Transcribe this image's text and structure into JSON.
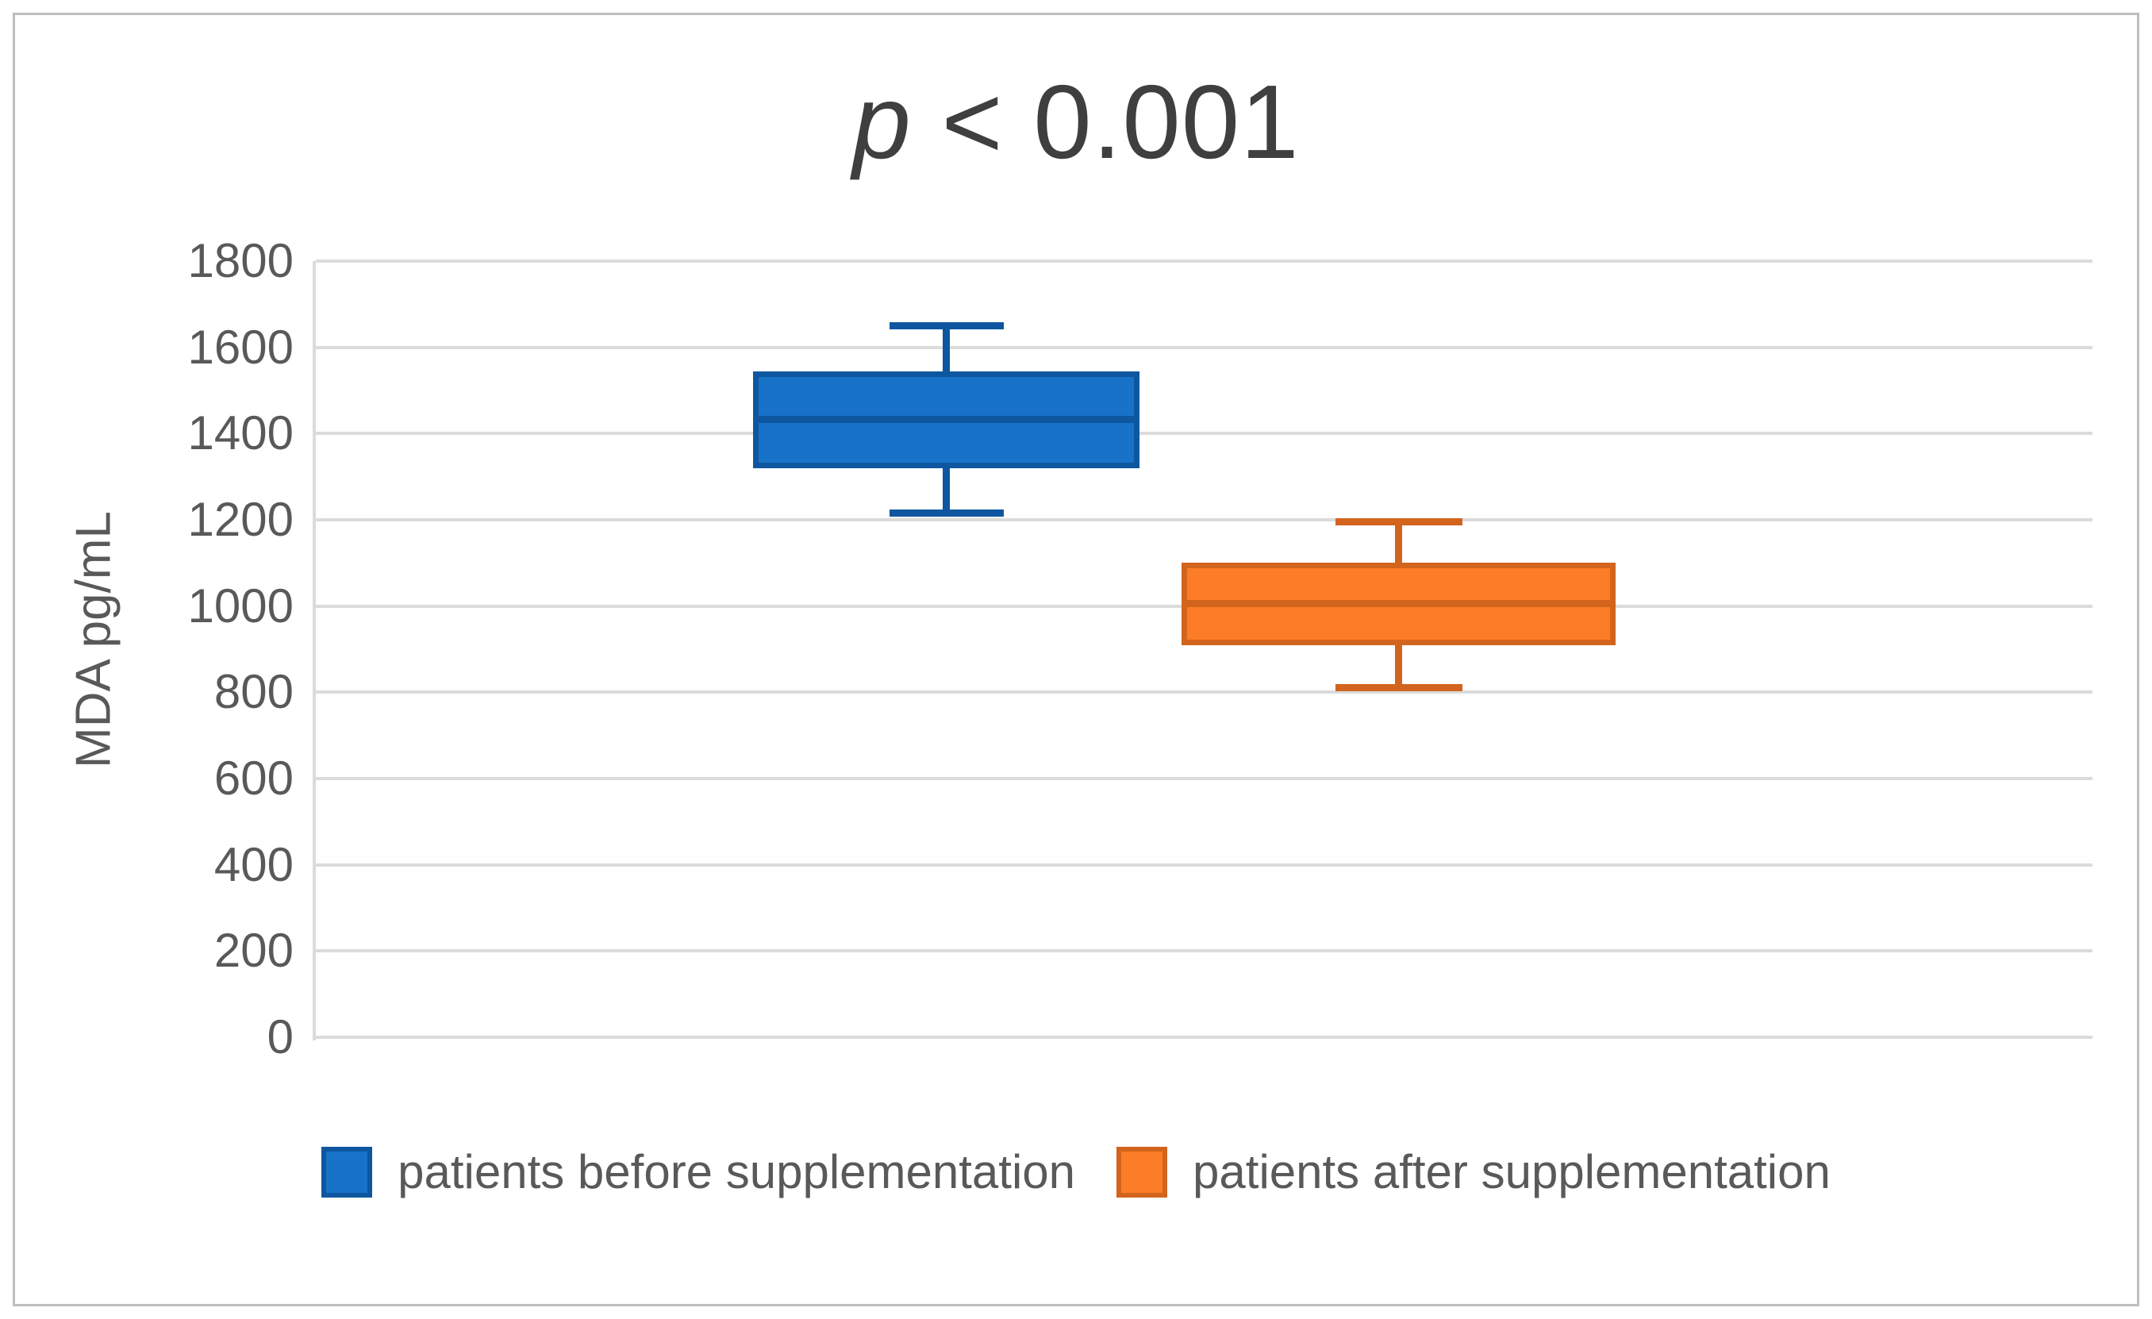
{
  "title": {
    "italic": "p",
    "rest": " < 0.001"
  },
  "y_axis": {
    "label": "MDA pg/mL"
  },
  "legend": {
    "entries": [
      {
        "label": "patients before supplementation"
      },
      {
        "label": "patients after supplementation"
      }
    ]
  },
  "colors": {
    "gridline": "#DBDBDB",
    "frame_border": "#BEBEBE",
    "axis_text": "#595959",
    "title_text": "#3F3F3F",
    "blue_fill": "#1872C7",
    "blue_border": "#0E57A0",
    "orange_fill": "#FC7D26",
    "orange_border": "#D2641D"
  },
  "chart_data": {
    "type": "boxplot",
    "title": "p < 0.001",
    "ylabel": "MDA pg/mL",
    "ylim": [
      0,
      1800
    ],
    "yticks": [
      0,
      200,
      400,
      600,
      800,
      1000,
      1200,
      1400,
      1600,
      1800
    ],
    "grid": true,
    "legend_position": "bottom",
    "series": [
      {
        "id": "before-supplementation",
        "name": "patients before supplementation",
        "min": 1215,
        "q1": 1320,
        "median": 1432,
        "q3": 1545,
        "max": 1650,
        "fill": "#1872C7",
        "border": "#0E57A0"
      },
      {
        "id": "after-supplementation",
        "name": "patients after supplementation",
        "min": 810,
        "q1": 910,
        "median": 1005,
        "q3": 1100,
        "max": 1195,
        "fill": "#FC7D26",
        "border": "#D2641D"
      }
    ]
  }
}
